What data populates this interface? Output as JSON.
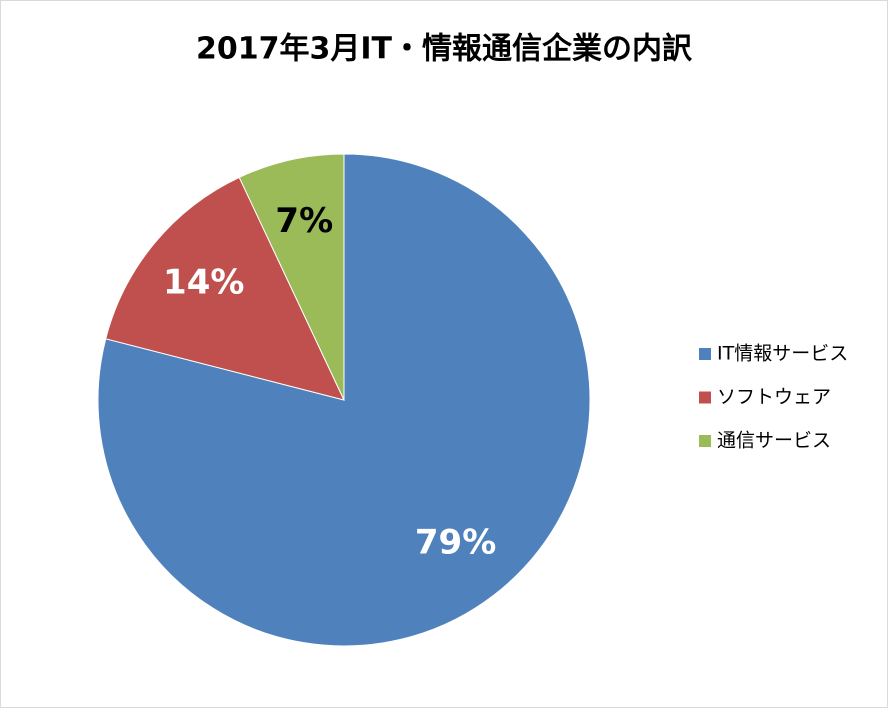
{
  "chart_data": {
    "type": "pie",
    "title": "2017年3月IT・情報通信企業の内訳",
    "categories": [
      "IT情報サービス",
      "ソフトウェア",
      "通信サービス"
    ],
    "values": [
      79,
      14,
      7
    ],
    "value_labels": [
      "79%",
      "14%",
      "7%"
    ],
    "colors": [
      "#4f81bd",
      "#c0504d",
      "#9bbb59"
    ],
    "label_colors": [
      "#ffffff",
      "#ffffff",
      "#000000"
    ],
    "legend": "right"
  }
}
